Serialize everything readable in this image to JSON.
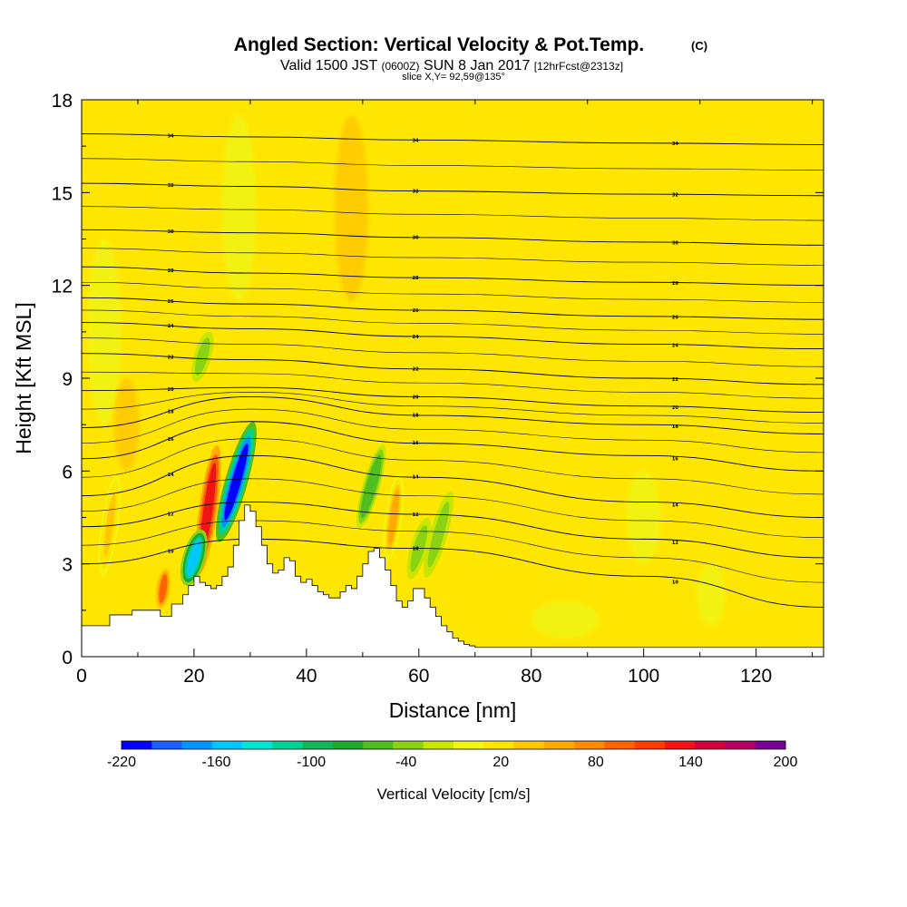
{
  "chart_data": {
    "type": "heatmap",
    "title": "Angled Section: Vertical Velocity & Pot.Temp.",
    "title_mark": "(C)",
    "subtitle": {
      "valid": "Valid 1500 JST",
      "utc": "(0600Z)",
      "date": "SUN 8 Jan 2017",
      "forecast": "[12hrFcst@2313z]",
      "slice": "slice X,Y= 92,59@135°"
    },
    "xlabel": "Distance [nm]",
    "ylabel": "Height [Kft MSL]",
    "xlim": [
      0,
      132
    ],
    "ylim": [
      0,
      18
    ],
    "xticks": [
      0,
      20,
      40,
      60,
      80,
      100,
      120
    ],
    "yticks": [
      0,
      3,
      6,
      9,
      12,
      15,
      18
    ],
    "colorbar": {
      "label": "Vertical Velocity [cm/s]",
      "min": -220,
      "step": 20,
      "tick_labels": [
        "-220",
        "-160",
        "-100",
        "-40",
        "20",
        "80",
        "140",
        "200"
      ],
      "tick_values": [
        -220,
        -160,
        -100,
        -40,
        20,
        80,
        140,
        200
      ],
      "colors": [
        "#0000ff",
        "#1f5fff",
        "#0096ff",
        "#00c8ff",
        "#00e6d2",
        "#00d296",
        "#14b45a",
        "#1eaa32",
        "#50be1e",
        "#8cd214",
        "#c8e600",
        "#f0f514",
        "#ffe600",
        "#ffc800",
        "#ffaa00",
        "#ff8c00",
        "#ff6400",
        "#ff3c00",
        "#f01414",
        "#d2003c",
        "#b40064",
        "#780096"
      ]
    },
    "field_colors": {
      "background": "#ffe600",
      "light_band": "#f0f514",
      "weak_up": "#ffc800",
      "moderate_up": "#ffaa00",
      "strong_up": "#ff6400",
      "core_up": "#d2003c",
      "weak_down": "#c8e600",
      "moderate_down": "#8cd214",
      "strong_down": "#00e6d2",
      "core_down": "#0096ff",
      "terrain": "#ffffff"
    },
    "terrain_profile": {
      "x": [
        0,
        5,
        9,
        14,
        16,
        18,
        19,
        20,
        21,
        22,
        23,
        24,
        25,
        26,
        27,
        28,
        29,
        30,
        31,
        32,
        33,
        34,
        35,
        36,
        37,
        38,
        39,
        40,
        41,
        42,
        43,
        44,
        45,
        46,
        47,
        48,
        49,
        50,
        51,
        52,
        53,
        54,
        55,
        56,
        57,
        58,
        59,
        60,
        61,
        62,
        63,
        64,
        65,
        66,
        67,
        68,
        69,
        70,
        71,
        72,
        74,
        132
      ],
      "height": [
        1.0,
        1.35,
        1.5,
        1.3,
        1.7,
        2.0,
        2.3,
        2.6,
        2.4,
        2.3,
        2.2,
        2.3,
        2.6,
        2.9,
        3.6,
        4.4,
        4.9,
        4.7,
        4.2,
        3.6,
        3.0,
        2.7,
        2.8,
        3.2,
        3.1,
        2.6,
        2.4,
        2.5,
        2.3,
        2.1,
        2.0,
        1.9,
        1.9,
        2.1,
        2.3,
        2.2,
        2.6,
        3.0,
        3.4,
        3.5,
        3.2,
        2.8,
        2.3,
        1.8,
        1.6,
        1.8,
        2.2,
        2.2,
        1.9,
        1.6,
        1.3,
        1.0,
        0.8,
        0.6,
        0.5,
        0.4,
        0.35,
        0.3,
        0.3,
        0.3,
        0.3,
        0.3
      ]
    },
    "updraft_cores": [
      {
        "x": 22.5,
        "base": 2.2,
        "top": 7.3,
        "value": 140
      },
      {
        "x": 55.5,
        "base": 3.0,
        "top": 6.0,
        "value": 60
      },
      {
        "x": 14.5,
        "base": 1.4,
        "top": 3.0,
        "value": 100
      },
      {
        "x": 5.0,
        "base": 2.5,
        "top": 6.0,
        "value": 40
      }
    ],
    "downdraft_cores": [
      {
        "x": 27.5,
        "base": 3.5,
        "top": 7.8,
        "value": -220
      },
      {
        "x": 20.0,
        "base": 2.2,
        "top": 4.2,
        "value": -160
      },
      {
        "x": 51.5,
        "base": 4.0,
        "top": 7.0,
        "value": -60
      },
      {
        "x": 60.0,
        "base": 2.4,
        "top": 4.6,
        "value": -40
      },
      {
        "x": 63.5,
        "base": 2.4,
        "top": 5.5,
        "value": -40
      },
      {
        "x": 21.5,
        "base": 8.8,
        "top": 10.6,
        "value": -40
      }
    ],
    "theta_contours": {
      "interval_c": 2,
      "labels_shown": [
        "34",
        "32",
        "30",
        "28",
        "26",
        "24",
        "22",
        "20",
        "18",
        "16",
        "14",
        "12",
        "10"
      ],
      "levels": [
        {
          "theta": 34,
          "y": [
            16.9,
            16.8,
            16.7,
            16.6,
            16.55
          ]
        },
        {
          "theta": 32,
          "y": [
            15.3,
            15.2,
            15.05,
            14.95,
            14.9
          ]
        },
        {
          "theta": 30,
          "y": [
            13.8,
            13.7,
            13.55,
            13.4,
            13.3
          ]
        },
        {
          "theta": 28,
          "y": [
            12.6,
            12.4,
            12.25,
            12.1,
            12.0
          ]
        },
        {
          "theta": 26,
          "y": [
            11.6,
            11.4,
            11.2,
            11.0,
            10.9
          ]
        },
        {
          "theta": 24,
          "y": [
            10.8,
            10.6,
            10.35,
            10.1,
            9.95
          ]
        },
        {
          "theta": 22,
          "y": [
            9.8,
            9.6,
            9.3,
            9.0,
            8.8
          ]
        },
        {
          "theta": 20,
          "y": [
            8.6,
            8.7,
            8.4,
            8.1,
            7.9
          ]
        },
        {
          "theta": 18,
          "y": [
            7.4,
            8.4,
            7.8,
            7.5,
            7.2
          ]
        },
        {
          "theta": 16,
          "y": [
            6.4,
            7.6,
            6.9,
            6.5,
            6.0
          ]
        },
        {
          "theta": 14,
          "y": [
            5.2,
            6.5,
            5.8,
            5.0,
            4.5
          ]
        },
        {
          "theta": 12,
          "y": [
            4.2,
            5.0,
            4.6,
            3.8,
            3.2
          ]
        },
        {
          "theta": 10,
          "y": [
            3.0,
            3.8,
            3.5,
            2.6,
            1.6
          ]
        }
      ],
      "x_nodes": [
        0,
        30,
        60,
        100,
        132
      ]
    }
  }
}
